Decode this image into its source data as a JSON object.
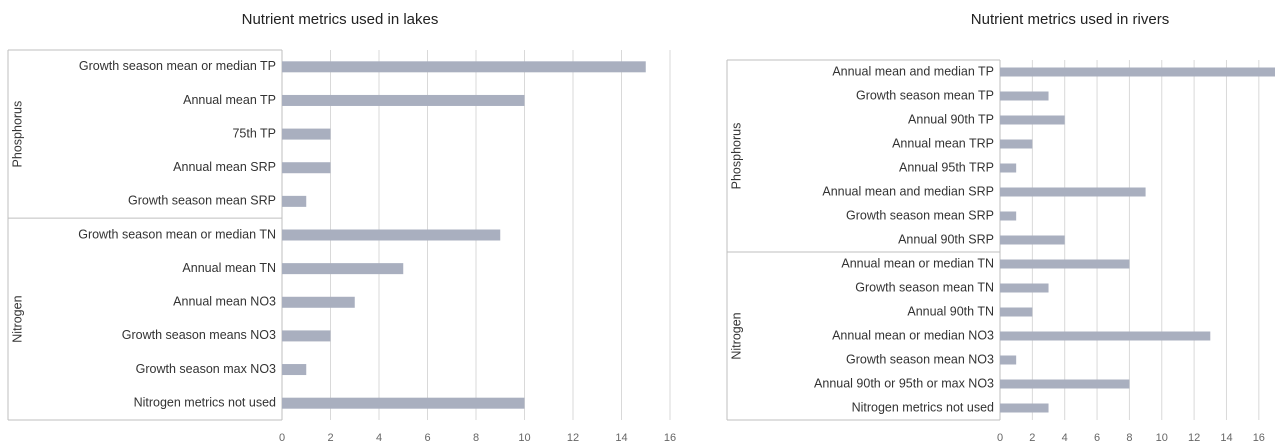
{
  "chart_data": [
    {
      "type": "bar",
      "orientation": "horizontal",
      "title": "Nutrient metrics used in lakes",
      "color": "#a9afbf",
      "xlim": [
        0,
        16
      ],
      "xticks": [
        0,
        2,
        4,
        6,
        8,
        10,
        12,
        14,
        16
      ],
      "grid": true,
      "groups": [
        {
          "name": "Phosphorus",
          "categories": [
            "Growth season mean or median TP",
            "Annual mean TP",
            "75th TP",
            "Annual mean SRP",
            "Growth season mean  SRP"
          ],
          "values": [
            15,
            10,
            2,
            2,
            1
          ]
        },
        {
          "name": "Nitrogen",
          "categories": [
            "Growth season mean or median TN",
            "Annual mean TN",
            "Annual mean NO3",
            "Growth season means NO3",
            "Growth season max NO3",
            "Nitrogen metrics not used"
          ],
          "values": [
            9,
            5,
            3,
            2,
            1,
            10
          ]
        }
      ]
    },
    {
      "type": "bar",
      "orientation": "horizontal",
      "title": "Nutrient metrics used in rivers",
      "color": "#a9afbf",
      "xlim": [
        0,
        17
      ],
      "xticks": [
        0,
        2,
        4,
        6,
        8,
        10,
        12,
        14,
        16
      ],
      "grid": true,
      "groups": [
        {
          "name": "Phosphorus",
          "categories": [
            "Annual mean and median TP",
            "Growth season mean TP",
            "Annual 90th TP",
            "Annual mean TRP",
            "Annual 95th TRP",
            "Annual mean and median SRP",
            "Growth season mean  SRP",
            "Annual 90th SRP"
          ],
          "values": [
            17,
            3,
            4,
            2,
            1,
            9,
            1,
            4
          ]
        },
        {
          "name": "Nitrogen",
          "categories": [
            "Annual mean or median TN",
            "Growth season mean TN",
            "Annual 90th TN",
            "Annual mean or median NO3",
            "Growth season mean NO3",
            "Annual 90th or 95th or max NO3",
            "Nitrogen metrics not used"
          ],
          "values": [
            8,
            3,
            2,
            13,
            1,
            8,
            3
          ]
        }
      ]
    }
  ]
}
